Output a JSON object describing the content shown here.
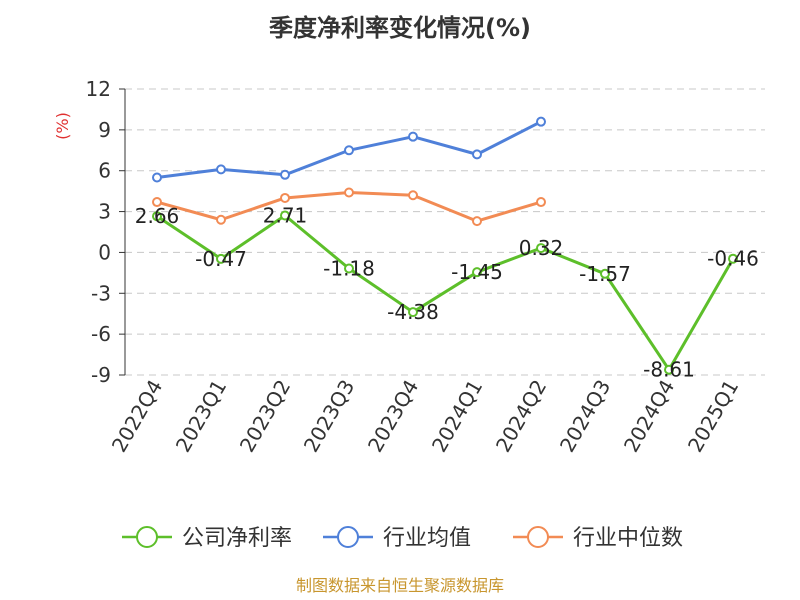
{
  "chart_data": {
    "type": "line",
    "title": "季度净利率变化情况(%)",
    "ylabel": "(%)",
    "ylim": [
      -9,
      12
    ],
    "yticks": [
      12,
      9,
      6,
      3,
      0,
      -3,
      -6,
      -9
    ],
    "categories": [
      "2022Q4",
      "2023Q1",
      "2023Q2",
      "2023Q3",
      "2023Q4",
      "2024Q1",
      "2024Q2",
      "2024Q3",
      "2024Q4",
      "2025Q1"
    ],
    "grid": true,
    "legend_position": "bottom",
    "series": [
      {
        "name": "公司净利率",
        "color": "#5dbf2a",
        "values": [
          2.66,
          -0.47,
          2.71,
          -1.18,
          -4.38,
          -1.45,
          0.32,
          -1.57,
          -8.61,
          -0.46
        ],
        "labels": [
          "2.66",
          "-0.47",
          "2.71",
          "-1.18",
          "-4.38",
          "-1.45",
          "0.32",
          "-1.57",
          "-8.61",
          "-0.46"
        ]
      },
      {
        "name": "行业均值",
        "color": "#4f80d9",
        "values": [
          5.5,
          6.1,
          5.7,
          7.5,
          8.5,
          7.2,
          9.6,
          null,
          null,
          null
        ]
      },
      {
        "name": "行业中位数",
        "color": "#f28b54",
        "values": [
          3.7,
          2.4,
          4.0,
          4.4,
          4.2,
          2.3,
          3.7,
          null,
          null,
          null
        ]
      }
    ]
  },
  "source": "制图数据来自恒生聚源数据库"
}
